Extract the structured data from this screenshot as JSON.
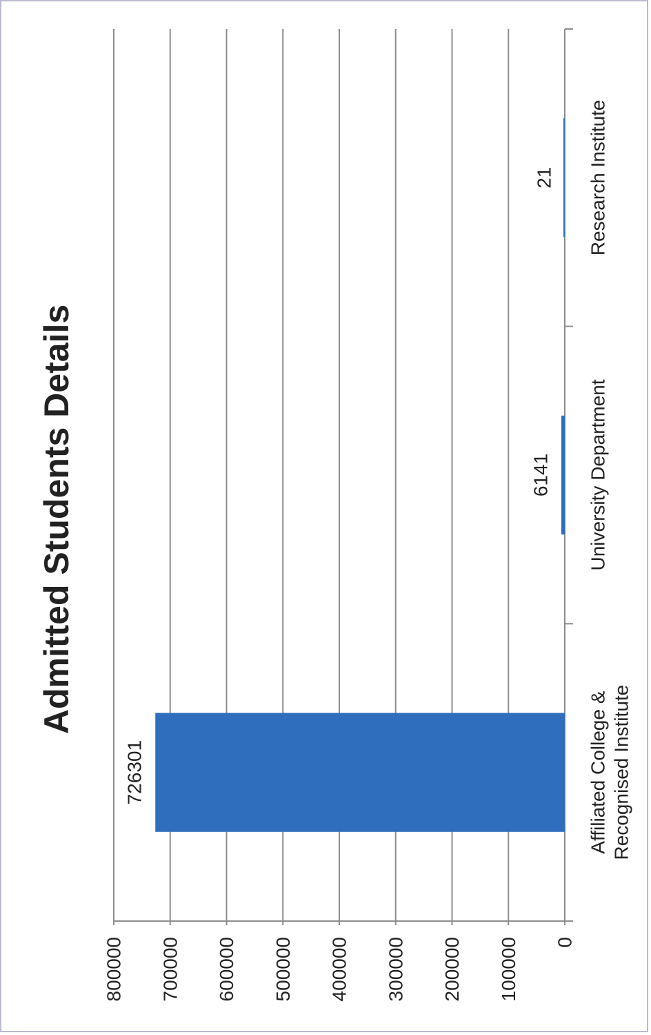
{
  "chart_data": {
    "type": "bar",
    "title": "Admitted Students Details",
    "categories": [
      [
        "Affiliated College &",
        "Recognised Institute"
      ],
      [
        "University Department"
      ],
      [
        "Research Institute"
      ]
    ],
    "values": [
      726301,
      6141,
      21
    ],
    "data_labels": [
      "726301",
      "6141",
      "21"
    ],
    "ylim": [
      0,
      800000
    ],
    "yticks": [
      0,
      100000,
      200000,
      300000,
      400000,
      500000,
      600000,
      700000,
      800000
    ],
    "ytick_labels": [
      "0",
      "100000",
      "200000",
      "300000",
      "400000",
      "500000",
      "600000",
      "700000",
      "800000"
    ],
    "grid": true,
    "legend": "none",
    "orientation": "rotated 90° counter-clockwise",
    "colors": {
      "bar": "#2f6ebd",
      "grid": "#8c8c8c",
      "axis": "#8c8c8c",
      "frame": "#b9b9cf"
    }
  }
}
